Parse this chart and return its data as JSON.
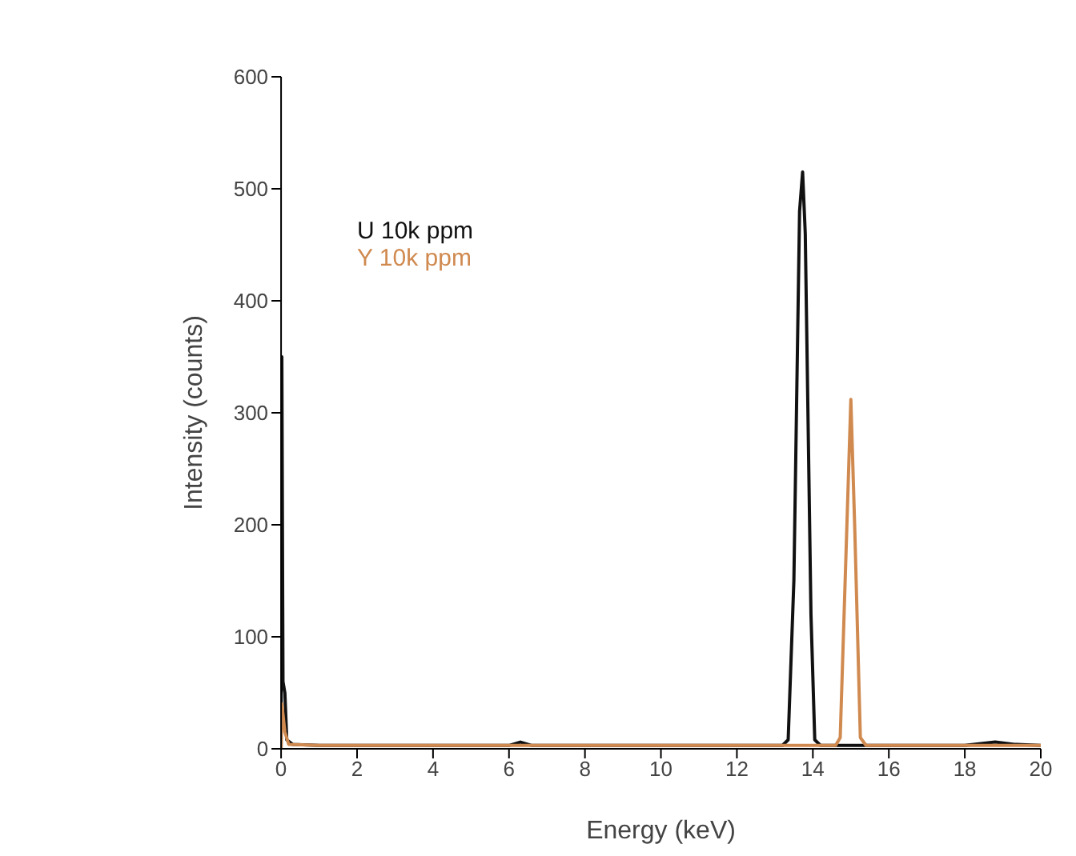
{
  "chart_data": {
    "type": "line",
    "xlabel": "Energy (keV)",
    "ylabel": "Intensity (counts)",
    "xlim": [
      0,
      20
    ],
    "xticks": [
      0,
      2,
      4,
      6,
      8,
      10,
      12,
      14,
      16,
      18,
      20
    ],
    "ylim": [
      0,
      600
    ],
    "yticks": [
      0,
      100,
      200,
      300,
      400,
      500,
      600
    ],
    "grid": false,
    "legend": "top left",
    "marker": "none",
    "line_style": "solid",
    "series": [
      {
        "name": "U 10k ppm",
        "color": "#111111",
        "x": [
          0,
          0.02,
          0.05,
          0.1,
          0.15,
          0.3,
          1,
          2,
          3,
          4,
          5,
          6,
          6.3,
          6.6,
          8,
          10,
          12,
          13.2,
          13.35,
          13.5,
          13.65,
          13.73,
          13.8,
          13.95,
          14.05,
          14.2,
          15,
          16,
          17,
          18,
          18.8,
          19.3,
          20
        ],
        "values": [
          0,
          350,
          60,
          50,
          8,
          4,
          3,
          3,
          3,
          3,
          3,
          3,
          6,
          3,
          3,
          3,
          3,
          3,
          8,
          150,
          480,
          515,
          460,
          120,
          8,
          3,
          3,
          3,
          3,
          3,
          6,
          4,
          3
        ]
      },
      {
        "name": "Y 10k ppm",
        "color": "#d08a50",
        "x": [
          0,
          0.02,
          0.1,
          0.2,
          1,
          4,
          8,
          12,
          14.6,
          14.72,
          14.85,
          15.0,
          15.1,
          15.25,
          15.4,
          17,
          20
        ],
        "values": [
          0,
          40,
          15,
          4,
          3,
          3,
          3,
          3,
          3,
          10,
          150,
          312,
          200,
          10,
          3,
          3,
          3
        ]
      }
    ]
  }
}
